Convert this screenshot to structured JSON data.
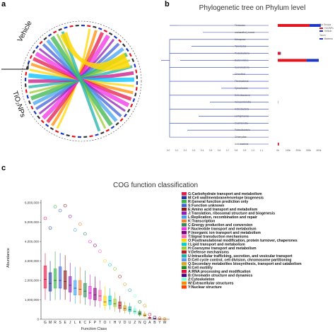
{
  "panels": {
    "a": {
      "letter": "a",
      "groups": [
        "Vehicle",
        "TiO₂NPs"
      ]
    },
    "b": {
      "letter": "b",
      "title": "Phylogenetic tree on Phylum level",
      "legend": {
        "title1": "Bar Groups",
        "groups": [
          "TiO2NPs",
          "Vehicle"
        ],
        "title2": "Taxon",
        "taxon": "Bacteria"
      },
      "x_ticks": [
        "0.0",
        "0.1",
        "0.2",
        "0.3",
        "0.4",
        "0.5",
        "0.6",
        "0.7",
        "0.8",
        "0.9",
        "1.0",
        "1.1"
      ],
      "bar_ticks": [
        "0k",
        "100k",
        "200k",
        "300k",
        "400k"
      ]
    },
    "c": {
      "letter": "c",
      "title": "COG function classification",
      "ylabel": "Abundance",
      "xlabel": "Function Class"
    }
  },
  "chart_data": [
    {
      "type": "bar",
      "title": "Phylogenetic tree on Phylum level",
      "categories": [
        "Firmicutes",
        "unclassified_norank",
        "Nitrospirae",
        "Tenericutes",
        "Proteobacteria",
        "Bacteroidetes",
        "Cyanobacteria",
        "Chloroflexi",
        "Fibrobacteres",
        "Spirochaetes",
        "Deferribacteres",
        "Verrucomicrobia",
        "Actinobacteria",
        "Lentisphaerae",
        "Elusimicrobia",
        "Patescibacteria",
        "Chlamydiae",
        "Acidobacteria"
      ],
      "series": [
        {
          "name": "TiO2NPs",
          "values": [
            310000,
            0,
            0,
            0,
            25000,
            280000,
            0,
            0,
            0,
            0,
            0,
            2000,
            0,
            0,
            0,
            0,
            0,
            12000
          ]
        },
        {
          "name": "Vehicle",
          "values": [
            110000,
            0,
            0,
            0,
            5000,
            120000,
            0,
            0,
            0,
            0,
            0,
            1000,
            0,
            0,
            0,
            0,
            0,
            0
          ]
        }
      ],
      "xlim": [
        0,
        400000
      ]
    },
    {
      "type": "box",
      "title": "COG function classification",
      "xlabel": "Function Class",
      "ylabel": "Abundance",
      "ylim": [
        0,
        6000000
      ],
      "y_ticks": [
        "0",
        "1,000,000",
        "2,000,000",
        "3,000,000",
        "4,000,000",
        "5,000,000",
        "6,000,000"
      ],
      "categories": [
        "G",
        "M",
        "R",
        "S",
        "E",
        "J",
        "L",
        "K",
        "C",
        "F",
        "P",
        "T",
        "O",
        "I",
        "H",
        "V",
        "D",
        "U",
        "Z",
        "N",
        "Q",
        "A",
        "B",
        "Y",
        "W"
      ],
      "medians": [
        2050000,
        1850000,
        2000000,
        2000000,
        1950000,
        1750000,
        1600000,
        1550000,
        1450000,
        1350000,
        1250000,
        1200000,
        900000,
        950000,
        800000,
        700000,
        550000,
        500000,
        400000,
        300000,
        200000,
        70000,
        30000,
        10000,
        5000
      ],
      "q1": [
        1600000,
        1450000,
        1600000,
        1600000,
        1550000,
        1400000,
        1250000,
        1250000,
        1150000,
        1050000,
        1000000,
        950000,
        700000,
        750000,
        650000,
        550000,
        450000,
        400000,
        300000,
        220000,
        150000,
        50000,
        20000,
        5000,
        2000
      ],
      "q3": [
        2750000,
        2400000,
        2600000,
        2700000,
        2500000,
        2200000,
        2000000,
        2000000,
        1850000,
        1700000,
        1600000,
        1500000,
        1200000,
        1200000,
        1050000,
        900000,
        700000,
        650000,
        550000,
        400000,
        280000,
        100000,
        50000,
        20000,
        10000
      ],
      "whisker_low": [
        1000000,
        950000,
        1000000,
        1000000,
        1000000,
        900000,
        800000,
        800000,
        750000,
        700000,
        650000,
        600000,
        450000,
        500000,
        400000,
        350000,
        300000,
        250000,
        200000,
        150000,
        100000,
        30000,
        10000,
        2000,
        1000
      ],
      "whisker_high": [
        3400000,
        3000000,
        3500000,
        3400000,
        3300000,
        2900000,
        2700000,
        2700000,
        2500000,
        2300000,
        2200000,
        2000000,
        1700000,
        1600000,
        1400000,
        1200000,
        900000,
        850000,
        700000,
        500000,
        400000,
        150000,
        70000,
        30000,
        15000
      ],
      "outliers": [
        5200000,
        4700000,
        5800000,
        5600000,
        5850000,
        5300000,
        4600000,
        4900000,
        4400000,
        4000000,
        3800000,
        3500000,
        3000000,
        2800000,
        2600000,
        2200000,
        1800000,
        1500000,
        1200000,
        900000,
        700000,
        250000,
        100000,
        50000,
        20000
      ],
      "legend": [
        {
          "label": "G:Carbohydrate transport and metabolism",
          "color": "#e6194b"
        },
        {
          "label": "M:Cell wall/membrane/envelope biogenesis",
          "color": "#1f3b9b"
        },
        {
          "label": "R:General function prediction only",
          "color": "#3cb44b"
        },
        {
          "label": "S:Function unknown",
          "color": "#4363d8"
        },
        {
          "label": "E:Amino acid transport and metabolism",
          "color": "#8b1a1a"
        },
        {
          "label": "J:Translation, ribosomal structure and biogenesis",
          "color": "#911eb4"
        },
        {
          "label": "L:Replication, recombination and repair",
          "color": "#46a0f0"
        },
        {
          "label": "K:Transcription",
          "color": "#f58231"
        },
        {
          "label": "C:Energy production and conversion",
          "color": "#2e8b57"
        },
        {
          "label": "F:Nucleotide transport and metabolism",
          "color": "#f032e6"
        },
        {
          "label": "P:Inorganic ion transport and metabolism",
          "color": "#800080"
        },
        {
          "label": "T:Signal transduction mechanisms",
          "color": "#ff69b4"
        },
        {
          "label": "O:Posttranslational modification, protein turnover, chaperones",
          "color": "#ffd700"
        },
        {
          "label": "I:Lipid transport and metabolism",
          "color": "#00ced1"
        },
        {
          "label": "H:Coenzyme transport and metabolism",
          "color": "#9acd32"
        },
        {
          "label": "V:Defense mechanisms",
          "color": "#b22222"
        },
        {
          "label": "U:Intracellular trafficking, secretion, and vesicular transport",
          "color": "#20b2aa"
        },
        {
          "label": "D:Cell cycle control, cell division, chromosome partitioning",
          "color": "#6495ed"
        },
        {
          "label": "Q:Secondary metabolites biosynthesis, transport and catabolism",
          "color": "#daa520"
        },
        {
          "label": "N:Cell motility",
          "color": "#228b22"
        },
        {
          "label": "A:RNA processing and modification",
          "color": "#dc143c"
        },
        {
          "label": "B:Chromatin structure and dynamics",
          "color": "#4b0082"
        },
        {
          "label": "Z:Cytoskeleton",
          "color": "#7fffd4"
        },
        {
          "label": "W:Extracellular structures",
          "color": "#ff8c00"
        },
        {
          "label": "Y:Nuclear structure",
          "color": "#ff4500"
        }
      ],
      "colors": [
        "#e6194b",
        "#1f3b9b",
        "#3cb44b",
        "#4363d8",
        "#8b1a1a",
        "#911eb4",
        "#46a0f0",
        "#f58231",
        "#2e8b57",
        "#f032e6",
        "#800080",
        "#ff69b4",
        "#ffd700",
        "#00ced1",
        "#9acd32",
        "#b22222",
        "#daa520",
        "#20b2aa",
        "#7fffd4",
        "#228b22",
        "#daa520",
        "#dc143c",
        "#4b0082",
        "#ff4500",
        "#ff8c00"
      ]
    }
  ]
}
